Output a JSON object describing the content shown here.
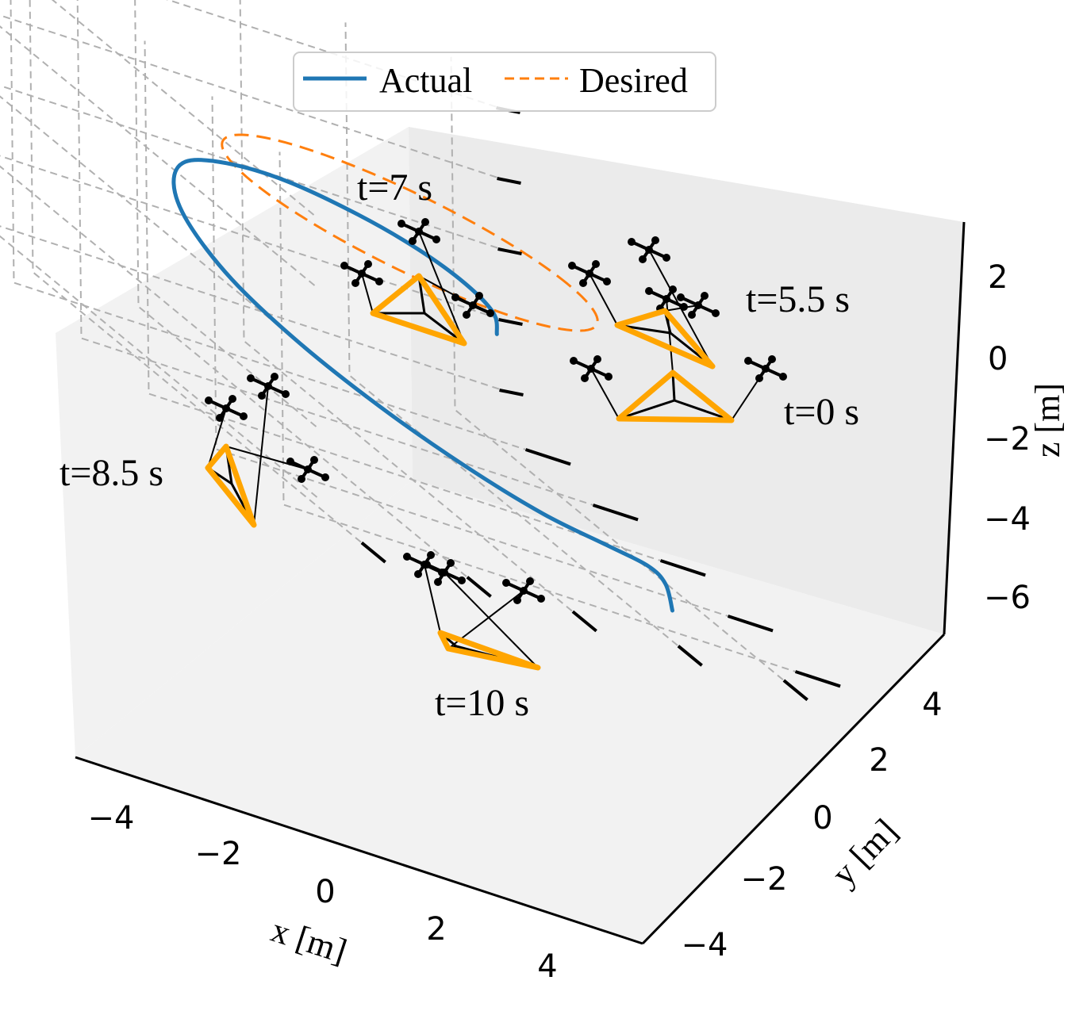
{
  "chart_data": {
    "type": "line3d",
    "xlabel": "x [m]",
    "ylabel": "y [m]",
    "zlabel": "z [m]",
    "x_ticks": [
      -4,
      -2,
      0,
      2,
      4
    ],
    "y_ticks": [
      -4,
      -2,
      0,
      2,
      4
    ],
    "z_ticks": [
      -6,
      -4,
      -2,
      0,
      2
    ],
    "x_tick_labels": [
      "−4",
      "−2",
      "0",
      "2",
      "4"
    ],
    "y_tick_labels": [
      "−4",
      "−2",
      "0",
      "2",
      "4"
    ],
    "z_tick_labels": [
      "−6",
      "−4",
      "−2",
      "0",
      "2"
    ],
    "xlim": [
      -5,
      5
    ],
    "ylim": [
      -5,
      5
    ],
    "zlim": [
      -7,
      3
    ],
    "grid": true,
    "legend": {
      "placement": "top-center"
    },
    "series": [
      {
        "name": "Actual",
        "style": "solid",
        "color": "#1f77b4",
        "points": [
          [
            1.0,
            -1.0,
            -1.6
          ],
          [
            1.7,
            0.2,
            -1.6
          ],
          [
            1.8,
            1.2,
            -1.5
          ],
          [
            1.5,
            2.1,
            -1.4
          ],
          [
            0.8,
            2.8,
            -1.3
          ],
          [
            -0.3,
            3.2,
            -1.2
          ],
          [
            -1.5,
            3.1,
            -1.2
          ],
          [
            -2.6,
            2.6,
            -1.3
          ],
          [
            -3.4,
            1.7,
            -1.6
          ],
          [
            -3.9,
            0.5,
            -2.0
          ],
          [
            -3.9,
            -0.8,
            -2.6
          ],
          [
            -3.4,
            -2.0,
            -3.2
          ],
          [
            -2.5,
            -3.0,
            -3.8
          ],
          [
            -1.3,
            -3.6,
            -4.4
          ],
          [
            0.0,
            -3.9,
            -4.9
          ],
          [
            1.2,
            -3.9,
            -5.2
          ],
          [
            2.1,
            -3.7,
            -5.5
          ],
          [
            2.5,
            -3.6,
            -5.9
          ],
          [
            2.5,
            -3.8,
            -6.5
          ]
        ]
      },
      {
        "name": "Desired",
        "style": "dashed",
        "color": "#ff7f0e",
        "circle": {
          "center": [
            0,
            0,
            0
          ],
          "radius": 3
        }
      }
    ],
    "annotations": [
      {
        "text": "t=0 s"
      },
      {
        "text": "t=5.5 s"
      },
      {
        "text": "t=7 s"
      },
      {
        "text": "t=8.5 s"
      },
      {
        "text": "t=10 s"
      }
    ],
    "payload_color": "#ffa500",
    "cable_color": "#000000",
    "drone_color": "#000000"
  }
}
